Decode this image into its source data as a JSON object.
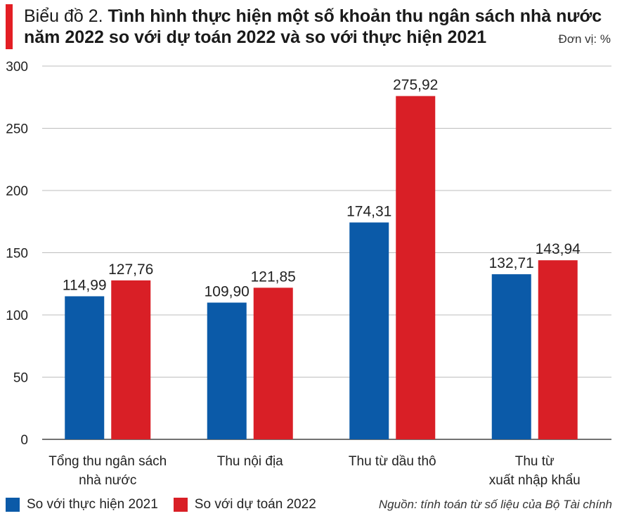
{
  "header": {
    "title_prefix": "Biểu đồ 2. ",
    "title_main": "Tình hình thực hiện một số khoản thu ngân sách nhà nước năm 2022 so với dự toán 2022 và so với thực hiện 2021",
    "unit": "Đơn vị: %"
  },
  "footer": {
    "source": "Nguồn: tính toán từ số liệu của Bộ Tài chính"
  },
  "colors": {
    "accent": "#e31e24",
    "series_blue": "#0b5aa8",
    "series_red": "#d91f26"
  },
  "chart_data": {
    "type": "bar",
    "title": "Tình hình thực hiện một số khoản thu ngân sách nhà nước năm 2022 so với dự toán 2022 và so với thực hiện 2021",
    "ylabel": "Đơn vị: %",
    "xlabel": "",
    "ylim": [
      0,
      300
    ],
    "yticks": [
      0,
      50,
      100,
      150,
      200,
      250,
      300
    ],
    "grid": true,
    "legend_position": "bottom-left",
    "categories": [
      [
        "Tổng thu ngân sách",
        "nhà nước"
      ],
      [
        "Thu nội địa"
      ],
      [
        "Thu từ dầu thô"
      ],
      [
        "Thu từ",
        "xuất nhập khẩu"
      ]
    ],
    "series": [
      {
        "name": "So với thực hiện 2021",
        "color": "#0b5aa8",
        "values": [
          114.99,
          109.9,
          174.31,
          132.71
        ],
        "labels": [
          "114,99",
          "109,90",
          "174,31",
          "132,71"
        ]
      },
      {
        "name": "So với dự toán 2022",
        "color": "#d91f26",
        "values": [
          127.76,
          121.85,
          275.92,
          143.94
        ],
        "labels": [
          "127,76",
          "121,85",
          "275,92",
          "143,94"
        ]
      }
    ]
  }
}
